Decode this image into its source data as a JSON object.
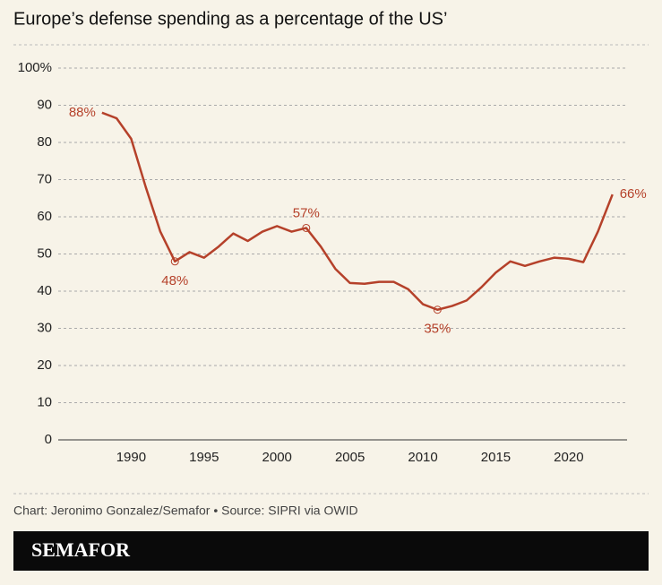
{
  "chart_data": {
    "type": "line",
    "title": "Europe’s defense spending as a percentage of the US’",
    "x": [
      1988,
      1989,
      1990,
      1991,
      1992,
      1993,
      1994,
      1995,
      1996,
      1997,
      1998,
      1999,
      2000,
      2001,
      2002,
      2003,
      2004,
      2005,
      2006,
      2007,
      2008,
      2009,
      2010,
      2011,
      2012,
      2013,
      2014,
      2015,
      2016,
      2017,
      2018,
      2019,
      2020,
      2021,
      2022,
      2023
    ],
    "values": [
      88,
      86.5,
      81,
      68,
      56,
      48,
      50.5,
      49,
      52,
      55.5,
      53.5,
      56,
      57.5,
      56,
      57,
      52,
      46,
      42.2,
      42,
      42.5,
      42.5,
      40.5,
      36.5,
      35,
      36,
      37.5,
      41,
      45,
      48,
      46.8,
      48,
      49,
      48.7,
      47.8,
      56,
      66
    ],
    "value_labels": [
      "88%",
      null,
      null,
      null,
      null,
      "48%",
      null,
      null,
      null,
      null,
      null,
      null,
      null,
      null,
      "57%",
      null,
      null,
      null,
      null,
      null,
      null,
      null,
      null,
      "35%",
      null,
      null,
      null,
      null,
      null,
      null,
      null,
      null,
      null,
      null,
      null,
      "66%"
    ],
    "color": "#b5412a",
    "xlim": [
      1985,
      2024
    ],
    "xticks": [
      1990,
      1995,
      2000,
      2005,
      2010,
      2015,
      2020
    ],
    "ylim": [
      0,
      100
    ],
    "yticks": [
      0,
      10,
      20,
      30,
      40,
      50,
      60,
      70,
      80,
      90,
      {
        "value": 100,
        "label": "100%"
      }
    ],
    "grid": true
  },
  "footer": {
    "credit": "Chart: Jeronimo Gonzalez/Semafor • Source: SIPRI via OWID",
    "logo": "SEMAFOR"
  }
}
